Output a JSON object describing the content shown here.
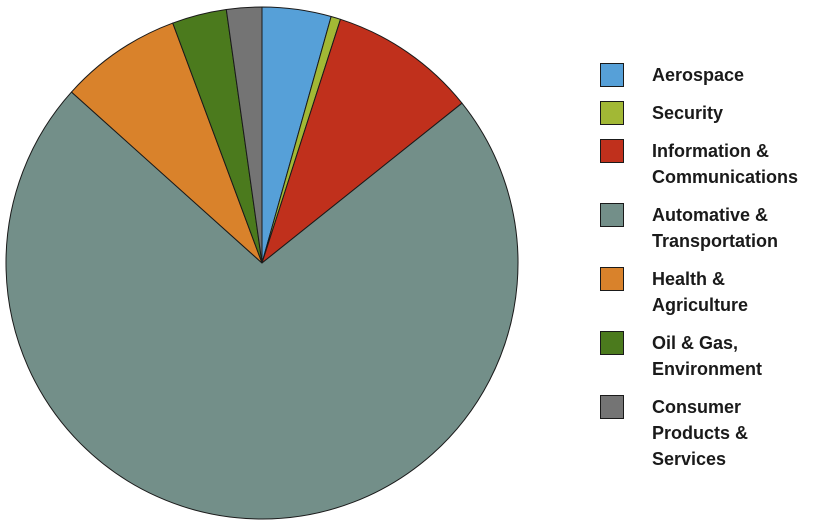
{
  "chart_data": {
    "type": "pie",
    "title": "",
    "start_angle_deg": 0,
    "direction": "clockwise",
    "slices": [
      {
        "label": "Aerospace",
        "value": 4.3,
        "color": "#56a0d8"
      },
      {
        "label": "Security",
        "value": 0.6,
        "color": "#a2b835"
      },
      {
        "label": "Information & Communications",
        "value": 9.2,
        "color": "#c0301c"
      },
      {
        "label": "Automative & Transportation",
        "value": 71.5,
        "color": "#738f89"
      },
      {
        "label": "Health & Agriculture",
        "value": 7.6,
        "color": "#d9822b"
      },
      {
        "label": "Oil & Gas, Environment",
        "value": 3.4,
        "color": "#4b7a1d"
      },
      {
        "label": "Consumer Products & Services",
        "value": 2.2,
        "color": "#747474"
      }
    ],
    "legend": {
      "placement": "right",
      "entries": [
        "Aerospace",
        "Security",
        "Information &\nCommunications",
        "Automative &\nTransportation",
        "Health &\nAgriculture",
        "Oil & Gas,\nEnvironment",
        "Consumer\nProducts &\nServices"
      ]
    }
  }
}
